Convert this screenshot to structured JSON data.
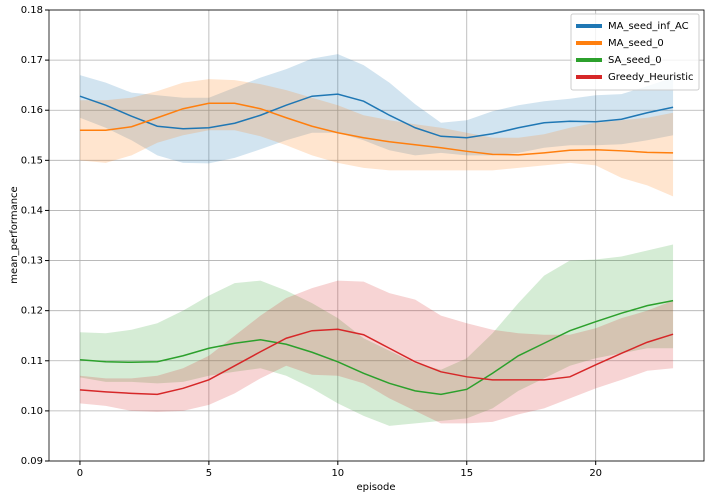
{
  "chart_data": {
    "type": "line",
    "x_label": "episode",
    "y_label": "mean_performance",
    "x": [
      0,
      1,
      2,
      3,
      4,
      5,
      6,
      7,
      8,
      9,
      10,
      11,
      12,
      13,
      14,
      15,
      16,
      17,
      18,
      19,
      20,
      21,
      22,
      23
    ],
    "series": [
      {
        "name": "MA_seed_inf_AC",
        "color": "#1f77b4",
        "values": [
          0.1628,
          0.161,
          0.1588,
          0.1568,
          0.1563,
          0.1565,
          0.1574,
          0.159,
          0.161,
          0.1628,
          0.1632,
          0.1618,
          0.159,
          0.1565,
          0.1548,
          0.1545,
          0.1553,
          0.1565,
          0.1575,
          0.1578,
          0.1577,
          0.1582,
          0.1595,
          0.1606
        ],
        "upper": [
          0.167,
          0.1655,
          0.1635,
          0.163,
          0.1625,
          0.1625,
          0.1645,
          0.1665,
          0.1682,
          0.1703,
          0.1712,
          0.169,
          0.1655,
          0.1612,
          0.1575,
          0.158,
          0.1598,
          0.161,
          0.1618,
          0.1623,
          0.163,
          0.1632,
          0.1648,
          0.1665
        ],
        "lower": [
          0.1585,
          0.1565,
          0.154,
          0.151,
          0.1495,
          0.1494,
          0.1505,
          0.1522,
          0.154,
          0.1555,
          0.1555,
          0.154,
          0.152,
          0.151,
          0.1515,
          0.151,
          0.151,
          0.1515,
          0.1525,
          0.153,
          0.153,
          0.1532,
          0.154,
          0.155
        ]
      },
      {
        "name": "MA_seed_0",
        "color": "#ff7f0e",
        "values": [
          0.156,
          0.156,
          0.1567,
          0.1585,
          0.1603,
          0.1614,
          0.1614,
          0.1603,
          0.1585,
          0.1568,
          0.1555,
          0.1545,
          0.1537,
          0.1531,
          0.1525,
          0.1518,
          0.1512,
          0.1511,
          0.1515,
          0.152,
          0.1521,
          0.1519,
          0.1516,
          0.1515
        ],
        "upper": [
          0.162,
          0.162,
          0.1625,
          0.1638,
          0.1655,
          0.1662,
          0.166,
          0.1652,
          0.164,
          0.1625,
          0.161,
          0.159,
          0.158,
          0.1572,
          0.1565,
          0.1555,
          0.1545,
          0.1545,
          0.1552,
          0.1565,
          0.1575,
          0.158,
          0.1585,
          0.1595
        ],
        "lower": [
          0.15,
          0.1495,
          0.151,
          0.1535,
          0.155,
          0.156,
          0.156,
          0.1548,
          0.153,
          0.151,
          0.1495,
          0.1485,
          0.148,
          0.148,
          0.148,
          0.148,
          0.148,
          0.1485,
          0.149,
          0.1495,
          0.149,
          0.1465,
          0.145,
          0.1428
        ]
      },
      {
        "name": "SA_seed_0",
        "color": "#2ca02c",
        "values": [
          0.1102,
          0.1098,
          0.1097,
          0.1098,
          0.111,
          0.1125,
          0.1135,
          0.1142,
          0.1133,
          0.1117,
          0.1098,
          0.1075,
          0.1055,
          0.104,
          0.1033,
          0.1043,
          0.1075,
          0.111,
          0.1135,
          0.116,
          0.1178,
          0.1195,
          0.121,
          0.122
        ],
        "upper": [
          0.1157,
          0.1155,
          0.1162,
          0.1175,
          0.12,
          0.123,
          0.1255,
          0.126,
          0.124,
          0.1215,
          0.1185,
          0.1145,
          0.112,
          0.1095,
          0.1082,
          0.1105,
          0.1155,
          0.1215,
          0.127,
          0.13,
          0.1302,
          0.1308,
          0.132,
          0.1332
        ],
        "lower": [
          0.1067,
          0.1058,
          0.1058,
          0.1055,
          0.1058,
          0.107,
          0.1078,
          0.1085,
          0.107,
          0.1045,
          0.1015,
          0.099,
          0.097,
          0.0975,
          0.098,
          0.0985,
          0.1005,
          0.104,
          0.1065,
          0.109,
          0.1105,
          0.1115,
          0.1125,
          0.1125
        ]
      },
      {
        "name": "Greedy_Heuristic",
        "color": "#d62728",
        "values": [
          0.1042,
          0.1038,
          0.1035,
          0.1033,
          0.1045,
          0.1062,
          0.109,
          0.1118,
          0.1145,
          0.116,
          0.1163,
          0.1152,
          0.1125,
          0.1098,
          0.1078,
          0.1068,
          0.1062,
          0.1062,
          0.1062,
          0.1068,
          0.1092,
          0.1115,
          0.1137,
          0.1153
        ],
        "upper": [
          0.107,
          0.1065,
          0.1065,
          0.107,
          0.1085,
          0.111,
          0.115,
          0.119,
          0.1225,
          0.1245,
          0.126,
          0.1258,
          0.1235,
          0.1222,
          0.119,
          0.1175,
          0.1162,
          0.1155,
          0.1152,
          0.1152,
          0.1165,
          0.1185,
          0.12,
          0.122
        ],
        "lower": [
          0.1015,
          0.101,
          0.1,
          0.0998,
          0.1,
          0.1012,
          0.1035,
          0.1065,
          0.109,
          0.1072,
          0.107,
          0.1055,
          0.1025,
          0.1,
          0.0975,
          0.0975,
          0.0978,
          0.0993,
          0.1005,
          0.1025,
          0.1045,
          0.1062,
          0.108,
          0.1085
        ]
      }
    ],
    "xlim": [
      -1.2,
      24.2
    ],
    "xticks": [
      0,
      5,
      10,
      15,
      20
    ],
    "ylim": [
      0.09,
      0.18
    ],
    "yticks": [
      0.09,
      {
        "value": 0.1,
        "label": "0.10"
      },
      0.11,
      0.12,
      0.13,
      0.14,
      0.15,
      0.16,
      0.17,
      0.18
    ],
    "grid": true,
    "legend": "upper right"
  }
}
